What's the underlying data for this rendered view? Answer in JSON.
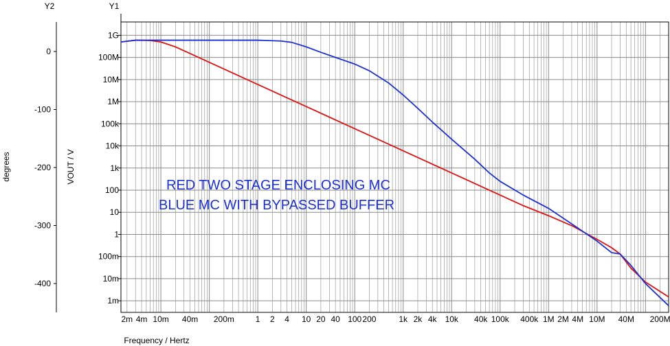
{
  "chart_data": {
    "type": "line",
    "xscale": "log",
    "yscale": "log",
    "grid": true,
    "xlabel": "Frequency / Hertz",
    "y1_label": "VOUT / V",
    "y2_label": "degrees",
    "y1_header": "Y1",
    "y2_header": "Y2",
    "xlim": [
      0.0015,
      300000000
    ],
    "ylim": [
      0.0003,
      4000000000
    ],
    "y2_ticks": [
      "0",
      "-100",
      "-200",
      "-300",
      "-400"
    ],
    "y1_ticks": [
      {
        "v": 1000000000.0,
        "t": "1G"
      },
      {
        "v": 100000000.0,
        "t": "100M"
      },
      {
        "v": 10000000.0,
        "t": "10M"
      },
      {
        "v": 1000000.0,
        "t": "1M"
      },
      {
        "v": 100000.0,
        "t": "100k"
      },
      {
        "v": 10000.0,
        "t": "10k"
      },
      {
        "v": 1000.0,
        "t": "1k"
      },
      {
        "v": 100,
        "t": "100"
      },
      {
        "v": 10,
        "t": "10"
      },
      {
        "v": 1,
        "t": "1"
      },
      {
        "v": 0.1,
        "t": "100m"
      },
      {
        "v": 0.01,
        "t": "10m"
      },
      {
        "v": 0.001,
        "t": "1m"
      }
    ],
    "x_ticks": [
      {
        "v": 0.002,
        "t": "2m"
      },
      {
        "v": 0.004,
        "t": "4m"
      },
      {
        "v": 0.01,
        "t": "10m"
      },
      {
        "v": 0.04,
        "t": "40m"
      },
      {
        "v": 0.2,
        "t": "200m"
      },
      {
        "v": 1,
        "t": "1"
      },
      {
        "v": 2,
        "t": "2"
      },
      {
        "v": 4,
        "t": "4"
      },
      {
        "v": 10,
        "t": "10"
      },
      {
        "v": 20,
        "t": "20"
      },
      {
        "v": 40,
        "t": "40"
      },
      {
        "v": 100,
        "t": "100"
      },
      {
        "v": 200,
        "t": "200"
      },
      {
        "v": 1000,
        "t": "1k"
      },
      {
        "v": 2000,
        "t": "2k"
      },
      {
        "v": 4000,
        "t": "4k"
      },
      {
        "v": 10000,
        "t": "10k"
      },
      {
        "v": 40000,
        "t": "40k"
      },
      {
        "v": 100000,
        "t": "100k"
      },
      {
        "v": 400000,
        "t": "400k"
      },
      {
        "v": 1000000,
        "t": "1M"
      },
      {
        "v": 2000000,
        "t": "2M"
      },
      {
        "v": 4000000,
        "t": "4M"
      },
      {
        "v": 10000000,
        "t": "10M"
      },
      {
        "v": 40000000,
        "t": "40M"
      },
      {
        "v": 200000000,
        "t": "200M"
      }
    ],
    "annotations": [
      "RED TWO STAGE ENCLOSING MC",
      "BLUE MC WITH BYPASSED BUFFER"
    ],
    "series": [
      {
        "color": "#e01010",
        "points": [
          [
            0.0015,
            500000000
          ],
          [
            0.003,
            600000000
          ],
          [
            0.006,
            580000000
          ],
          [
            0.01,
            500000000
          ],
          [
            0.02,
            300000000
          ],
          [
            0.04,
            150000000
          ],
          [
            0.1,
            60000000
          ],
          [
            0.3,
            20000000
          ],
          [
            1,
            6000000
          ],
          [
            3,
            2000000
          ],
          [
            10,
            600000
          ],
          [
            30,
            200000
          ],
          [
            100,
            60000
          ],
          [
            300,
            20000
          ],
          [
            1000,
            6000
          ],
          [
            3000,
            2000
          ],
          [
            10000,
            600
          ],
          [
            30000,
            200
          ],
          [
            100000,
            60
          ],
          [
            300000,
            20
          ],
          [
            1000000,
            7
          ],
          [
            3000000,
            2.5
          ],
          [
            10000000,
            0.6
          ],
          [
            20000000,
            0.25
          ],
          [
            30000000,
            0.13
          ],
          [
            50000000,
            0.03
          ],
          [
            100000000,
            0.007
          ],
          [
            300000000,
            0.0015
          ]
        ]
      },
      {
        "color": "#1a2fd6",
        "points": [
          [
            0.0015,
            500000000
          ],
          [
            0.003,
            600000000
          ],
          [
            0.01,
            600000000
          ],
          [
            0.1,
            600000000
          ],
          [
            1,
            600000000
          ],
          [
            3,
            550000000
          ],
          [
            5,
            480000000
          ],
          [
            10,
            300000000
          ],
          [
            20,
            170000000
          ],
          [
            40,
            100000000
          ],
          [
            100,
            50000000
          ],
          [
            200,
            25000000
          ],
          [
            500,
            7000000
          ],
          [
            1000,
            2000000
          ],
          [
            2000,
            500000
          ],
          [
            4000,
            120000
          ],
          [
            10000,
            20000
          ],
          [
            30000,
            2500
          ],
          [
            60000,
            600
          ],
          [
            100000,
            250
          ],
          [
            300000,
            60
          ],
          [
            1000000,
            15
          ],
          [
            3000000,
            3
          ],
          [
            10000000,
            0.5
          ],
          [
            20000000,
            0.15
          ],
          [
            30000000,
            0.13
          ],
          [
            50000000,
            0.04
          ],
          [
            100000000,
            0.006
          ],
          [
            300000000,
            0.0006
          ]
        ]
      }
    ]
  }
}
